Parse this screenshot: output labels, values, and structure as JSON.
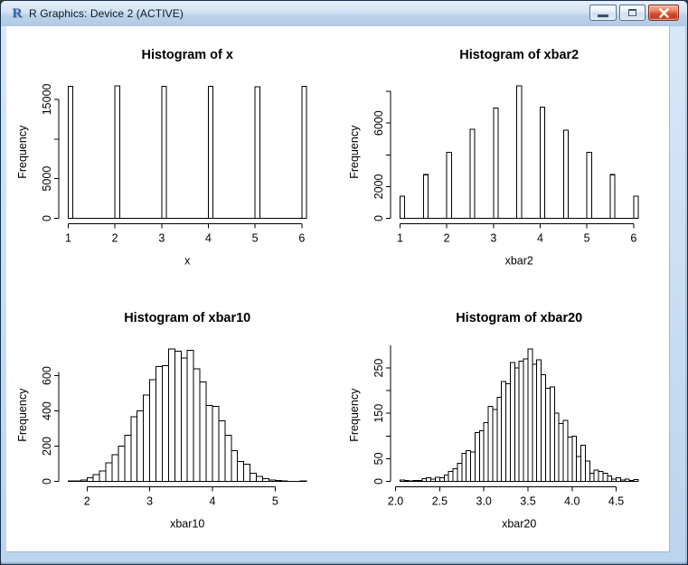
{
  "window": {
    "title": "R Graphics: Device 2 (ACTIVE)",
    "app_icon": "R",
    "controls": {
      "minimize": "minimize-icon",
      "maximize": "maximize-icon",
      "close": "close-icon"
    }
  },
  "chart_data": [
    {
      "type": "bar",
      "title": "Histogram of x",
      "xlabel": "x",
      "ylabel": "Frequency",
      "bar_width": 0.1,
      "bars": [
        {
          "x": 1,
          "count": 16650
        },
        {
          "x": 2,
          "count": 16690
        },
        {
          "x": 3,
          "count": 16620
        },
        {
          "x": 4,
          "count": 16640
        },
        {
          "x": 5,
          "count": 16600
        },
        {
          "x": 6,
          "count": 16660
        }
      ],
      "xlim": [
        1,
        6.1
      ],
      "ylim": [
        0,
        16700
      ],
      "x_ticks": [
        1,
        2,
        3,
        4,
        5,
        6
      ],
      "x_tick_labels": [
        "1",
        "2",
        "3",
        "4",
        "5",
        "6"
      ],
      "y_ticks": [
        0,
        5000,
        10000,
        15000
      ],
      "y_tick_labels": [
        "0",
        "5000",
        "",
        "15000"
      ],
      "y_axis_top": 15000,
      "grid": false,
      "legend": false
    },
    {
      "type": "bar",
      "title": "Histogram of xbar2",
      "xlabel": "xbar2",
      "ylabel": "Frequency",
      "bar_width": 0.1,
      "bars": [
        {
          "x": 1.0,
          "count": 1400
        },
        {
          "x": 1.5,
          "count": 2750
        },
        {
          "x": 2.0,
          "count": 4150
        },
        {
          "x": 2.5,
          "count": 5600
        },
        {
          "x": 3.0,
          "count": 6950
        },
        {
          "x": 3.5,
          "count": 8350
        },
        {
          "x": 4.0,
          "count": 7000
        },
        {
          "x": 4.5,
          "count": 5550
        },
        {
          "x": 5.0,
          "count": 4150
        },
        {
          "x": 5.5,
          "count": 2750
        },
        {
          "x": 6.0,
          "count": 1400
        }
      ],
      "xlim": [
        1,
        6.1
      ],
      "ylim": [
        0,
        8350
      ],
      "x_ticks": [
        1,
        2,
        3,
        4,
        5,
        6
      ],
      "x_tick_labels": [
        "1",
        "2",
        "3",
        "4",
        "5",
        "6"
      ],
      "y_ticks": [
        0,
        2000,
        4000,
        6000,
        8000
      ],
      "y_tick_labels": [
        "0",
        "2000",
        "",
        "6000",
        ""
      ],
      "y_axis_top": 8000,
      "grid": false,
      "legend": false
    },
    {
      "type": "bar",
      "title": "Histogram of xbar10",
      "xlabel": "xbar10",
      "ylabel": "Frequency",
      "bar_width": 0.1,
      "bin_start": 1.7,
      "counts": [
        2,
        3,
        8,
        20,
        38,
        60,
        105,
        152,
        200,
        262,
        368,
        400,
        490,
        578,
        652,
        658,
        752,
        738,
        700,
        745,
        638,
        565,
        432,
        425,
        345,
        262,
        175,
        112,
        98,
        45,
        28,
        16,
        8,
        4,
        2,
        1,
        0,
        3
      ],
      "xlim": [
        1.7,
        5.5
      ],
      "ylim": [
        0,
        752
      ],
      "x_ticks": [
        2,
        3,
        4,
        5
      ],
      "x_tick_labels": [
        "2",
        "3",
        "4",
        "5"
      ],
      "y_ticks": [
        0,
        200,
        400,
        600
      ],
      "y_tick_labels": [
        "0",
        "200",
        "400",
        "600"
      ],
      "y_axis_top": 620,
      "grid": false,
      "legend": false
    },
    {
      "type": "bar",
      "title": "Histogram of xbar20",
      "xlabel": "xbar20",
      "ylabel": "Frequency",
      "bar_width": 0.05,
      "bin_start": 2.05,
      "counts": [
        3,
        2,
        1,
        2,
        2,
        6,
        8,
        5,
        9,
        8,
        14,
        22,
        28,
        40,
        62,
        68,
        65,
        108,
        112,
        130,
        165,
        158,
        185,
        220,
        215,
        262,
        250,
        265,
        270,
        292,
        258,
        268,
        235,
        205,
        208,
        150,
        128,
        135,
        98,
        100,
        55,
        80,
        45,
        18,
        25,
        22,
        18,
        12,
        5,
        8,
        3,
        5,
        2,
        4
      ],
      "xlim": [
        2.05,
        4.75
      ],
      "ylim": [
        0,
        292
      ],
      "x_ticks": [
        2.0,
        2.5,
        3.0,
        3.5,
        4.0,
        4.5
      ],
      "x_tick_labels": [
        "2.0",
        "2.5",
        "3.0",
        "3.5",
        "4.0",
        "4.5"
      ],
      "y_ticks": [
        0,
        50,
        100,
        150,
        200,
        250
      ],
      "y_tick_labels": [
        "0",
        "50",
        "",
        "150",
        "",
        "250"
      ],
      "y_axis_top": 300,
      "grid": false,
      "legend": false
    }
  ]
}
